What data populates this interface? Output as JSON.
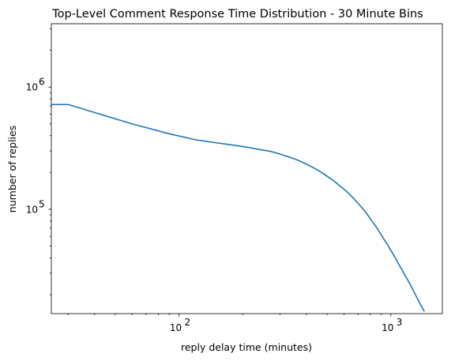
{
  "chart_data": {
    "type": "line",
    "title": "Top-Level Comment Response Time Distribution - 30 Minute Bins",
    "xlabel": "reply delay time (minutes)",
    "ylabel": "number of replies",
    "xscale": "log",
    "yscale": "log",
    "xlim": [
      25,
      1750
    ],
    "ylim": [
      14000,
      3300000
    ],
    "grid": false,
    "line_color": "#1f77b4",
    "x_major_ticks": [
      {
        "value": 100,
        "base": "10",
        "exp": "2"
      },
      {
        "value": 1000,
        "base": "10",
        "exp": "3"
      }
    ],
    "y_major_ticks": [
      {
        "value": 100000,
        "base": "10",
        "exp": "5"
      },
      {
        "value": 1000000,
        "base": "10",
        "exp": "6"
      }
    ],
    "series": [
      {
        "x": [
          25,
          30,
          60,
          90,
          120,
          150,
          180,
          210,
          240,
          270,
          300,
          330,
          360,
          390,
          420,
          450,
          480,
          510,
          540,
          570,
          600,
          630,
          660,
          690,
          720,
          750,
          780,
          810,
          840,
          870,
          900,
          930,
          960,
          990,
          1020,
          1050,
          1080,
          1110,
          1140,
          1170,
          1200,
          1230,
          1260,
          1290,
          1320,
          1350,
          1380,
          1410,
          1440
        ],
        "y": [
          720000,
          720000,
          500000,
          415000,
          370000,
          350000,
          335000,
          322000,
          308000,
          298000,
          283000,
          268000,
          254000,
          239000,
          224000,
          210000,
          196000,
          182000,
          170000,
          157000,
          146000,
          136000,
          125000,
          115000,
          106000,
          97500,
          89000,
          81000,
          74500,
          68000,
          62000,
          56500,
          52000,
          47500,
          43500,
          40000,
          36500,
          33500,
          31000,
          28500,
          26500,
          24500,
          22600,
          20900,
          19300,
          17900,
          16600,
          15500,
          14600
        ]
      }
    ]
  }
}
